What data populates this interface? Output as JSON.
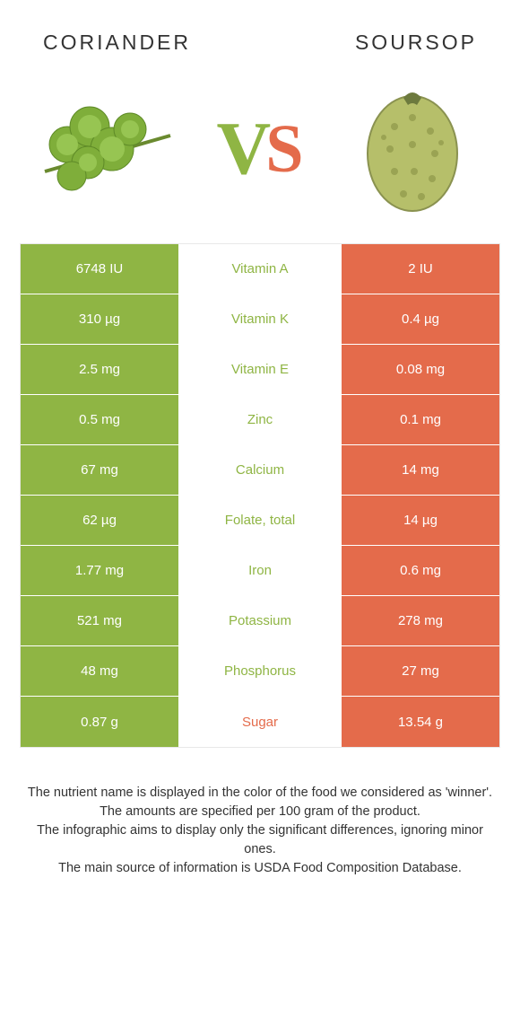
{
  "colors": {
    "left": "#8fb544",
    "right": "#e46b4b",
    "leftText": "#8fb544",
    "rightText": "#e46b4b",
    "vs_v": "#8fb544",
    "vs_s": "#e46b4b"
  },
  "left": {
    "title": "CORIANDER"
  },
  "right": {
    "title": "SOURSOP"
  },
  "rows": [
    {
      "left": "6748 IU",
      "label": "Vitamin A",
      "right": "2 IU",
      "winner": "left"
    },
    {
      "left": "310 µg",
      "label": "Vitamin K",
      "right": "0.4 µg",
      "winner": "left"
    },
    {
      "left": "2.5 mg",
      "label": "Vitamin E",
      "right": "0.08 mg",
      "winner": "left"
    },
    {
      "left": "0.5 mg",
      "label": "Zinc",
      "right": "0.1 mg",
      "winner": "left"
    },
    {
      "left": "67 mg",
      "label": "Calcium",
      "right": "14 mg",
      "winner": "left"
    },
    {
      "left": "62 µg",
      "label": "Folate, total",
      "right": "14 µg",
      "winner": "left"
    },
    {
      "left": "1.77 mg",
      "label": "Iron",
      "right": "0.6 mg",
      "winner": "left"
    },
    {
      "left": "521 mg",
      "label": "Potassium",
      "right": "278 mg",
      "winner": "left"
    },
    {
      "left": "48 mg",
      "label": "Phosphorus",
      "right": "27 mg",
      "winner": "left"
    },
    {
      "left": "0.87 g",
      "label": "Sugar",
      "right": "13.54 g",
      "winner": "right"
    }
  ],
  "footnote": "The nutrient name is displayed in the color of the food we considered as 'winner'.\nThe amounts are specified per 100 gram of the product.\nThe infographic aims to display only the significant differences, ignoring minor ones.\nThe main source of information is USDA Food Composition Database."
}
